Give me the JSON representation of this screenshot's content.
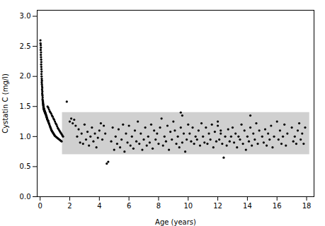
{
  "chart_data": {
    "type": "scatter",
    "xlabel": "Age (years)",
    "ylabel": "Cystatin C (mg/l)",
    "xlim": [
      -0.2,
      18.5
    ],
    "ylim": [
      0,
      3.1
    ],
    "xticks": [
      0,
      2,
      4,
      6,
      8,
      10,
      12,
      14,
      16,
      18
    ],
    "yticks": [
      {
        "value": 0,
        "label": "0.0"
      },
      0.5,
      {
        "value": 1.0,
        "label": "1.0"
      },
      1.5,
      {
        "value": 2.0,
        "label": "2.0"
      },
      2.5,
      {
        "value": 3.0,
        "label": "3.0"
      }
    ],
    "grid": false,
    "color": "#000000",
    "ref_range": {
      "x_start": 1.5,
      "x_end": 18.2,
      "y_low": 0.7,
      "y_high": 1.4,
      "color": "#d0d0d0"
    },
    "x": [
      0.02,
      0.03,
      0.04,
      0.05,
      0.04,
      0.06,
      0.05,
      0.06,
      0.07,
      0.08,
      0.07,
      0.08,
      0.09,
      0.1,
      0.09,
      0.1,
      0.11,
      0.12,
      0.11,
      0.12,
      0.13,
      0.14,
      0.13,
      0.15,
      0.14,
      0.15,
      0.16,
      0.17,
      0.16,
      0.18,
      0.18,
      0.2,
      0.19,
      0.21,
      0.2,
      0.22,
      0.23,
      0.22,
      0.24,
      0.25,
      0.24,
      0.26,
      0.27,
      0.26,
      0.28,
      0.3,
      0.29,
      0.32,
      0.31,
      0.33,
      0.35,
      0.34,
      0.36,
      0.38,
      0.37,
      0.4,
      0.42,
      0.41,
      0.44,
      0.43,
      0.46,
      0.48,
      0.47,
      0.5,
      0.52,
      0.55,
      0.54,
      0.57,
      0.6,
      0.62,
      0.65,
      0.68,
      0.7,
      0.73,
      0.75,
      0.78,
      0.8,
      0.83,
      0.85,
      0.88,
      0.9,
      0.93,
      0.95,
      0.98,
      1.0,
      1.05,
      1.1,
      1.15,
      1.2,
      1.25,
      1.3,
      1.35,
      1.4,
      1.45,
      0.5,
      0.55,
      0.6,
      0.65,
      0.7,
      0.75,
      0.8,
      0.85,
      0.9,
      0.95,
      1.0,
      1.05,
      1.1,
      1.15,
      1.2,
      1.25,
      1.3,
      1.35,
      1.4,
      1.45,
      1.5,
      1.55,
      1.8,
      2.0,
      2.1,
      2.2,
      2.3,
      2.4,
      2.5,
      2.6,
      2.7,
      2.8,
      2.9,
      3.0,
      3.1,
      3.2,
      3.3,
      3.4,
      3.5,
      3.6,
      3.7,
      3.8,
      3.9,
      4.0,
      4.1,
      4.2,
      4.3,
      4.4,
      4.5,
      4.6,
      4.8,
      4.9,
      5.0,
      5.1,
      5.2,
      5.3,
      5.4,
      5.5,
      5.6,
      5.7,
      5.8,
      5.9,
      6.0,
      6.1,
      6.2,
      6.3,
      6.4,
      6.5,
      6.6,
      6.7,
      6.8,
      6.9,
      7.0,
      7.1,
      7.2,
      7.3,
      7.4,
      7.5,
      7.6,
      7.7,
      7.8,
      7.9,
      8.0,
      8.1,
      8.2,
      8.3,
      8.4,
      8.5,
      8.6,
      8.7,
      8.8,
      8.9,
      9.0,
      9.1,
      9.2,
      9.3,
      9.4,
      9.5,
      9.6,
      9.7,
      9.8,
      9.9,
      9.5,
      9.6,
      10.0,
      10.1,
      10.2,
      10.3,
      10.4,
      10.5,
      10.6,
      10.7,
      10.8,
      10.9,
      11.0,
      11.1,
      11.2,
      11.3,
      11.4,
      11.5,
      11.6,
      11.7,
      11.8,
      11.9,
      12.0,
      12.1,
      12.2,
      12.3,
      12.4,
      12.5,
      12.6,
      12.7,
      12.8,
      12.9,
      12.0,
      12.2,
      13.0,
      13.1,
      13.2,
      13.3,
      13.4,
      13.5,
      13.6,
      13.7,
      13.8,
      13.9,
      14.0,
      14.1,
      14.2,
      14.3,
      14.4,
      14.5,
      14.6,
      14.7,
      14.8,
      14.2,
      15.0,
      15.1,
      15.2,
      15.3,
      15.4,
      15.5,
      15.6,
      15.7,
      15.8,
      16.0,
      16.1,
      16.2,
      16.3,
      16.4,
      16.5,
      16.6,
      16.7,
      17.0,
      17.1,
      17.2,
      17.3,
      17.4,
      17.5,
      17.6,
      17.7,
      17.8,
      17.9
    ],
    "values": [
      2.6,
      2.55,
      2.52,
      2.48,
      2.44,
      2.4,
      2.36,
      2.32,
      2.28,
      2.24,
      2.2,
      2.16,
      2.12,
      2.08,
      2.04,
      2.0,
      1.96,
      1.93,
      1.9,
      1.87,
      1.84,
      1.81,
      1.78,
      1.75,
      1.72,
      1.7,
      1.68,
      1.65,
      1.62,
      1.6,
      1.58,
      1.57,
      1.55,
      1.54,
      1.52,
      1.52,
      1.5,
      1.49,
      1.48,
      1.47,
      1.46,
      1.46,
      1.45,
      1.44,
      1.44,
      1.43,
      1.42,
      1.42,
      1.41,
      1.41,
      1.4,
      1.39,
      1.38,
      1.38,
      1.37,
      1.36,
      1.35,
      1.34,
      1.33,
      1.32,
      1.31,
      1.3,
      1.29,
      1.28,
      1.27,
      1.26,
      1.25,
      1.23,
      1.22,
      1.2,
      1.18,
      1.16,
      1.15,
      1.13,
      1.11,
      1.1,
      1.09,
      1.08,
      1.07,
      1.06,
      1.05,
      1.04,
      1.03,
      1.02,
      1.01,
      1.0,
      0.99,
      0.98,
      0.97,
      0.96,
      0.95,
      0.94,
      0.93,
      0.92,
      1.5,
      1.48,
      1.45,
      1.42,
      1.4,
      1.38,
      1.35,
      1.33,
      1.3,
      1.28,
      1.25,
      1.22,
      1.2,
      1.17,
      1.14,
      1.12,
      1.1,
      1.08,
      1.06,
      1.04,
      1.02,
      1.0,
      1.58,
      1.25,
      1.3,
      1.22,
      1.28,
      1.18,
      1.0,
      1.12,
      0.9,
      1.05,
      0.88,
      1.2,
      0.95,
      1.08,
      0.85,
      1.0,
      1.15,
      0.92,
      1.05,
      0.82,
      0.98,
      1.1,
      1.22,
      0.95,
      1.18,
      1.05,
      0.55,
      0.58,
      0.92,
      1.15,
      0.78,
      1.0,
      0.88,
      1.12,
      0.82,
      0.95,
      1.2,
      0.75,
      1.05,
      0.9,
      1.18,
      0.85,
      1.0,
      0.8,
      1.1,
      0.92,
      1.25,
      0.88,
      1.05,
      0.78,
      0.95,
      1.15,
      0.85,
      1.0,
      0.9,
      1.2,
      0.8,
      1.1,
      0.95,
      1.05,
      0.88,
      1.15,
      1.3,
      0.85,
      1.0,
      0.92,
      1.18,
      0.78,
      1.08,
      0.95,
      1.25,
      1.1,
      0.88,
      1.0,
      0.82,
      1.15,
      0.9,
      1.05,
      0.75,
      0.95,
      1.4,
      1.35,
      1.2,
      1.05,
      0.92,
      1.15,
      0.88,
      1.0,
      0.95,
      1.1,
      0.85,
      1.22,
      1.0,
      0.9,
      1.15,
      0.88,
      1.05,
      0.95,
      1.2,
      0.82,
      1.08,
      0.92,
      1.18,
      0.95,
      1.05,
      0.88,
      0.65,
      1.0,
      0.85,
      1.12,
      0.92,
      1.0,
      1.25,
      1.1,
      1.15,
      0.9,
      1.05,
      0.82,
      1.0,
      0.95,
      1.2,
      0.88,
      1.1,
      0.78,
      1.0,
      0.92,
      1.15,
      0.85,
      1.05,
      0.95,
      1.22,
      0.88,
      1.1,
      1.35,
      1.0,
      0.9,
      1.12,
      0.85,
      1.05,
      0.95,
      1.18,
      0.82,
      1.0,
      1.25,
      0.95,
      1.1,
      0.88,
      1.0,
      1.2,
      0.85,
      1.05,
      1.15,
      0.92,
      1.0,
      0.88,
      1.1,
      1.22,
      0.95,
      1.05,
      0.88,
      1.15
    ]
  }
}
